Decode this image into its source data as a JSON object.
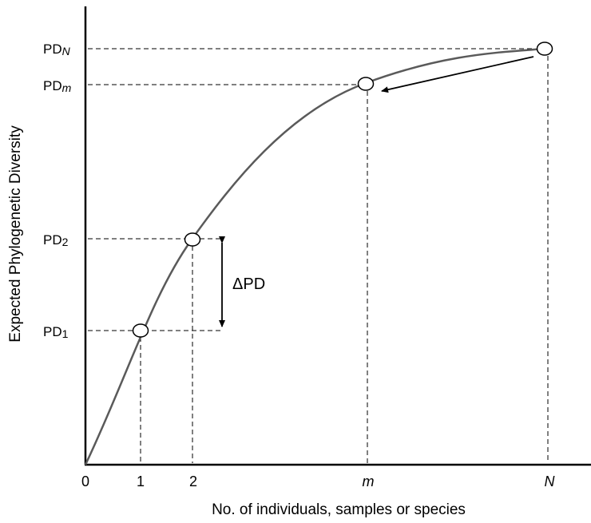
{
  "chart_data": {
    "type": "line",
    "title": "",
    "xlabel": "No. of individuals, samples or species",
    "ylabel": "Expected Phylogenetic Diversity",
    "x_ticks": [
      "0",
      "1",
      "2",
      "m",
      "N"
    ],
    "y_labels": [
      {
        "base": "PD",
        "sub": "N",
        "italic": true
      },
      {
        "base": "PD",
        "sub": "m",
        "italic": true
      },
      {
        "base": "PD",
        "sub": "2",
        "italic": false
      },
      {
        "base": "PD",
        "sub": "1",
        "italic": false
      }
    ],
    "highlighted_points": [
      "1",
      "2",
      "m",
      "N"
    ],
    "delta_annotation": "ΔPD",
    "curve": "concave accumulation curve starting at 0",
    "legend": "none",
    "grid": false,
    "colors": {
      "curve": "#5a5a5a",
      "axis": "#000000",
      "guides": "#000000"
    }
  }
}
